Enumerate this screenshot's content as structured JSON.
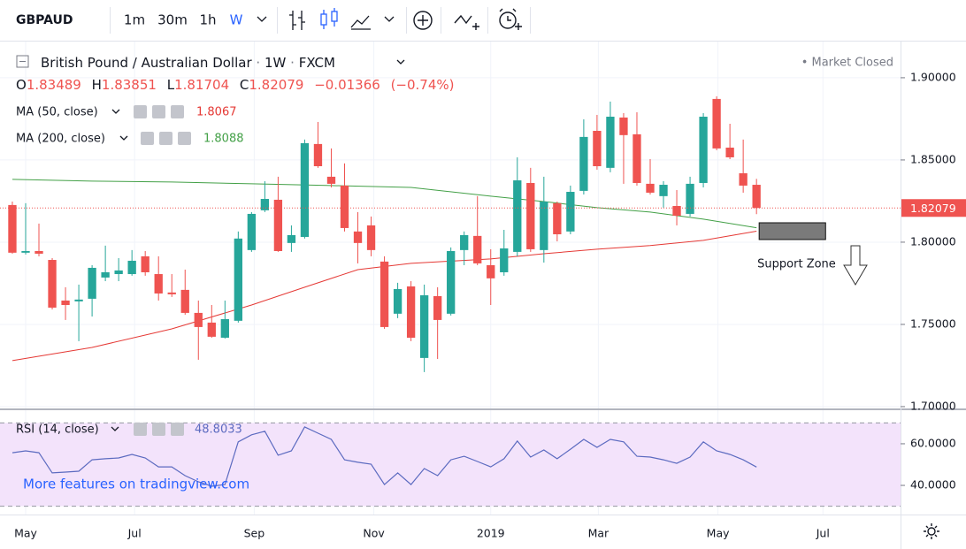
{
  "toolbar": {
    "symbol": "GBPAUD",
    "intervals": [
      "1m",
      "30m",
      "1h",
      "W"
    ],
    "active_interval": 3
  },
  "legend": {
    "instrument": "British Pound / Australian Dollar",
    "separator": "·",
    "timeframe": "1W",
    "source": "FXCM",
    "status": "• Market Closed",
    "ohlc_labels": [
      "O",
      "H",
      "L",
      "C"
    ],
    "change": "−0.01366",
    "change_pct": "(−0.74%)"
  },
  "watermark": "More features on tradingview.com",
  "chart_data": [
    {
      "type": "candlestick",
      "up_color": "#26a69a",
      "down_color": "#ef5350",
      "grid": true,
      "open": [
        1.8226,
        1.7936,
        1.7946,
        1.7892,
        1.7645,
        1.764,
        1.7656,
        1.7785,
        1.7806,
        1.7806,
        1.7914,
        1.7806,
        1.7694,
        1.771,
        1.757,
        1.7511,
        1.7419,
        1.7522,
        1.7952,
        1.8194,
        1.8258,
        1.7995,
        1.8032,
        1.8597,
        1.8398,
        1.8344,
        1.8065,
        1.8102,
        1.7882,
        1.7565,
        1.7731,
        1.7296,
        1.7672,
        1.7565,
        1.7952,
        1.8038,
        1.786,
        1.7817,
        1.7941,
        1.836,
        1.7952,
        1.8237,
        1.8065,
        1.8312,
        1.8677,
        1.8452,
        1.8758,
        1.8656,
        1.8355,
        1.828,
        1.822,
        1.8172,
        1.836,
        1.8871,
        1.8575,
        1.8419,
        1.83489
      ],
      "high": [
        1.8247,
        1.8237,
        1.8113,
        1.7903,
        1.7726,
        1.7742,
        1.786,
        1.7979,
        1.7903,
        1.7952,
        1.7946,
        1.7914,
        1.7806,
        1.7833,
        1.7645,
        1.7618,
        1.7645,
        1.8065,
        1.8183,
        1.8371,
        1.8398,
        1.8102,
        1.8624,
        1.8731,
        1.857,
        1.8479,
        1.8183,
        1.8156,
        1.7914,
        1.7753,
        1.7763,
        1.7742,
        1.7726,
        1.7968,
        1.8065,
        1.828,
        1.7957,
        1.8075,
        1.8516,
        1.8452,
        1.8398,
        1.8247,
        1.8344,
        1.8747,
        1.8774,
        1.8855,
        1.8785,
        1.879,
        1.8505,
        1.8371,
        1.8317,
        1.8398,
        1.8785,
        1.8887,
        1.872,
        1.8624,
        1.83851
      ],
      "low": [
        1.793,
        1.7925,
        1.7914,
        1.7591,
        1.7527,
        1.7398,
        1.7548,
        1.7763,
        1.7763,
        1.7796,
        1.7796,
        1.7645,
        1.7667,
        1.7559,
        1.7285,
        1.7419,
        1.7414,
        1.7511,
        1.7941,
        1.8183,
        1.7941,
        1.7941,
        1.8022,
        1.8452,
        1.8333,
        1.8065,
        1.7871,
        1.7914,
        1.7473,
        1.7538,
        1.7398,
        1.721,
        1.729,
        1.7554,
        1.786,
        1.786,
        1.7618,
        1.7796,
        1.7914,
        1.7941,
        1.7876,
        1.8005,
        1.8048,
        1.829,
        1.8441,
        1.8425,
        1.8355,
        1.8344,
        1.829,
        1.821,
        1.8102,
        1.8156,
        1.8333,
        1.8559,
        1.8505,
        1.8301,
        1.81704
      ],
      "close": [
        1.7936,
        1.7946,
        1.793,
        1.7602,
        1.7618,
        1.7651,
        1.7844,
        1.7817,
        1.7828,
        1.7887,
        1.7817,
        1.7688,
        1.7683,
        1.757,
        1.7484,
        1.7425,
        1.7532,
        1.8022,
        1.8172,
        1.8263,
        1.7946,
        1.8043,
        1.8602,
        1.8462,
        1.8355,
        1.8086,
        1.7995,
        1.7952,
        1.7484,
        1.7715,
        1.7419,
        1.7677,
        1.7527,
        1.7946,
        1.8043,
        1.7871,
        1.778,
        1.7962,
        1.8376,
        1.7957,
        1.8247,
        1.8048,
        1.8306,
        1.864,
        1.8462,
        1.8763,
        1.8651,
        1.836,
        1.8301,
        1.8349,
        1.8161,
        1.8355,
        1.8763,
        1.857,
        1.8516,
        1.8344,
        1.82079
      ],
      "series": [
        {
          "name": "MA (50, close)",
          "color": "#e53935",
          "x": [
            0,
            6,
            12,
            18,
            22,
            26,
            30,
            36,
            40,
            44,
            48,
            52,
            56
          ],
          "values": [
            1.728,
            1.736,
            1.7473,
            1.7618,
            1.7726,
            1.7833,
            1.7871,
            1.7898,
            1.793,
            1.7957,
            1.7979,
            1.8011,
            1.8067
          ]
        },
        {
          "name": "MA (200, close)",
          "color": "#43a047",
          "x": [
            0,
            6,
            12,
            18,
            24,
            30,
            36,
            40,
            44,
            48,
            52,
            56
          ],
          "values": [
            1.8382,
            1.8371,
            1.8366,
            1.8355,
            1.8344,
            1.8333,
            1.828,
            1.8247,
            1.821,
            1.8183,
            1.814,
            1.8088
          ]
        }
      ],
      "xlim": [
        -0.93,
        66.84
      ],
      "xticks": [
        {
          "value": 1,
          "label": "May"
        },
        {
          "value": 9.2,
          "label": "Jul"
        },
        {
          "value": 18.2,
          "label": "Sep"
        },
        {
          "value": 27.2,
          "label": "Nov"
        },
        {
          "value": 36,
          "label": "2019"
        },
        {
          "value": 44.1,
          "label": "Mar"
        },
        {
          "value": 53.1,
          "label": "May"
        },
        {
          "value": 61,
          "label": "Jul"
        }
      ],
      "ylim": [
        1.6989,
        1.922
      ],
      "yticks": [
        {
          "value": 1.9,
          "label": "1.90000"
        },
        {
          "value": 1.85,
          "label": "1.85000"
        },
        {
          "value": 1.8,
          "label": "1.80000"
        },
        {
          "value": 1.75,
          "label": "1.75000"
        },
        {
          "value": 1.7,
          "label": "1.70000"
        }
      ],
      "annotations": [
        {
          "text": "Support Zone",
          "x": [
            56.2,
            61.2
          ],
          "y": [
            1.8016,
            1.8118
          ]
        }
      ]
    },
    {
      "type": "line",
      "name": "RSI (14, close)",
      "color": "#5c6bc0",
      "band_color": "#f3e3fb",
      "values": [
        55.7,
        56.6,
        55.7,
        46.0,
        46.4,
        46.8,
        52.3,
        52.8,
        53.2,
        54.9,
        53.2,
        48.9,
        48.9,
        44.7,
        41.7,
        39.6,
        40.4,
        60.9,
        64.3,
        66.0,
        54.5,
        56.6,
        68.1,
        65.1,
        62.1,
        52.3,
        51.1,
        50.2,
        40.4,
        46.0,
        40.4,
        48.1,
        44.7,
        52.3,
        54.0,
        51.5,
        48.9,
        52.8,
        61.3,
        53.6,
        57.0,
        52.8,
        57.4,
        62.1,
        58.3,
        62.1,
        60.9,
        54.0,
        53.6,
        52.3,
        50.6,
        53.6,
        60.9,
        56.6,
        54.9,
        52.3,
        48.8033
      ],
      "xlim": [
        -0.93,
        66.84
      ],
      "ylim": [
        26,
        75.7
      ],
      "bands": [
        30,
        70
      ],
      "yticks": [
        {
          "value": 60,
          "label": "60.0000"
        },
        {
          "value": 40,
          "label": "40.0000"
        }
      ]
    }
  ]
}
